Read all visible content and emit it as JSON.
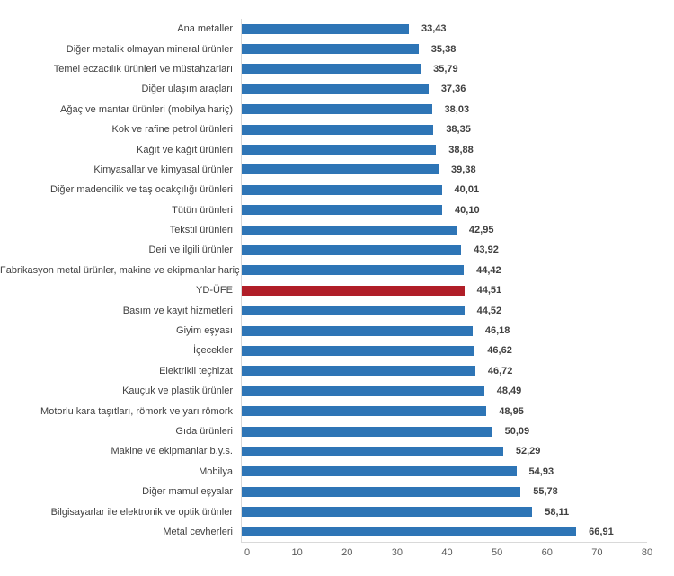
{
  "chart_data": {
    "type": "bar",
    "orientation": "horizontal",
    "title": "",
    "categories": [
      "Ana metaller",
      "Diğer metalik olmayan mineral ürünler",
      "Temel eczacılık ürünleri ve müstahzarları",
      "Diğer ulaşım araçları",
      "Ağaç ve mantar ürünleri (mobilya hariç)",
      "Kok ve rafine petrol ürünleri",
      "Kağıt ve kağıt ürünleri",
      "Kimyasallar ve kimyasal ürünler",
      "Diğer madencilik ve taş ocakçılığı ürünleri",
      "Tütün ürünleri",
      "Tekstil ürünleri",
      "Deri ve ilgili ürünler",
      "Fabrikasyon metal ürünler, makine ve ekipmanlar hariç",
      "YD-ÜFE",
      "Basım ve kayıt hizmetleri",
      "Giyim eşyası",
      "İçecekler",
      "Elektrikli teçhizat",
      "Kauçuk ve plastik ürünler",
      "Motorlu kara taşıtları, römork ve yarı römork",
      "Gıda ürünleri",
      "Makine ve ekipmanlar b.y.s.",
      "Mobilya",
      "Diğer mamul eşyalar",
      "Bilgisayarlar ile elektronik ve optik ürünler",
      "Metal cevherleri"
    ],
    "values": [
      33.43,
      35.38,
      35.79,
      37.36,
      38.03,
      38.35,
      38.88,
      39.38,
      40.01,
      40.1,
      42.95,
      43.92,
      44.42,
      44.51,
      44.52,
      46.18,
      46.62,
      46.72,
      48.49,
      48.95,
      50.09,
      52.29,
      54.93,
      55.78,
      58.11,
      66.91
    ],
    "value_labels": [
      "33,43",
      "35,38",
      "35,79",
      "37,36",
      "38,03",
      "38,35",
      "38,88",
      "39,38",
      "40,01",
      "40,10",
      "42,95",
      "43,92",
      "44,42",
      "44,51",
      "44,52",
      "46,18",
      "46,62",
      "46,72",
      "48,49",
      "48,95",
      "50,09",
      "52,29",
      "54,93",
      "55,78",
      "58,11",
      "66,91"
    ],
    "highlight_category": "YD-ÜFE",
    "highlight_index": 13,
    "bar_color": "#2E75B6",
    "highlight_color": "#B01E28",
    "xlabel": "",
    "ylabel": "",
    "xlim": [
      0,
      80
    ],
    "x_ticks": [
      0,
      10,
      20,
      30,
      40,
      50,
      60,
      70,
      80
    ],
    "grid": false,
    "legend": "none"
  }
}
